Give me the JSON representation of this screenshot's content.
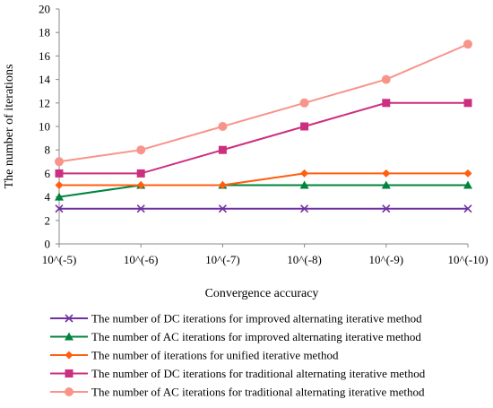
{
  "chart_data": {
    "type": "line",
    "title": "",
    "xlabel": "Convergence accuracy",
    "ylabel": "The number of iterations",
    "categories": [
      "10^(-5)",
      "10^(-6)",
      "10^(-7)",
      "10^(-8)",
      "10^(-9)",
      "10^(-10)"
    ],
    "ylim": [
      0,
      20
    ],
    "yticks": [
      0,
      2,
      4,
      6,
      8,
      10,
      12,
      14,
      16,
      18,
      20
    ],
    "grid": false,
    "legend_position": "bottom",
    "series": [
      {
        "name": "The number of DC iterations for improved alternating iterative method",
        "values": [
          3,
          3,
          3,
          3,
          3,
          3
        ],
        "color": "#7030A0",
        "marker": "x"
      },
      {
        "name": "The number of AC iterations for improved alternating iterative method",
        "values": [
          4,
          5,
          5,
          5,
          5,
          5
        ],
        "color": "#00843D",
        "marker": "triangle"
      },
      {
        "name": "The number of iterations for unified iterative method",
        "values": [
          5,
          5,
          5,
          6,
          6,
          6
        ],
        "color": "#FF5F0F",
        "marker": "diamond"
      },
      {
        "name": "The number of DC iterations for traditional alternating iterative method",
        "values": [
          6,
          6,
          8,
          10,
          12,
          12
        ],
        "color": "#CC2F7F",
        "marker": "square"
      },
      {
        "name": "The number of AC iterations for traditional alternating iterative method",
        "values": [
          7,
          8,
          10,
          12,
          14,
          17
        ],
        "color": "#F8948A",
        "marker": "circle"
      }
    ]
  }
}
